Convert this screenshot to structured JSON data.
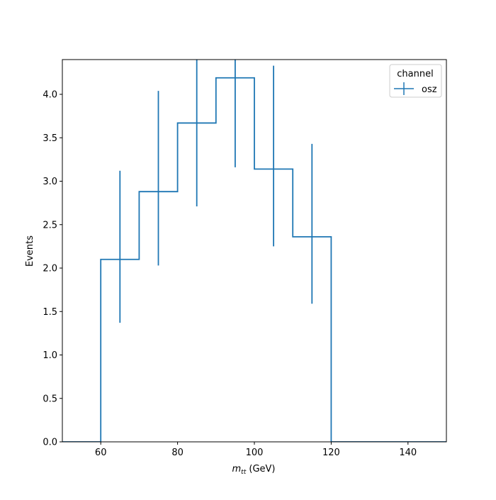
{
  "chart_data": {
    "type": "step-histogram",
    "title": "",
    "xlabel": "m",
    "xlabel_subscript": "tt",
    "xlabel_unit": " (GeV)",
    "ylabel": "Events",
    "xlim": [
      50,
      150
    ],
    "ylim": [
      0,
      4.4
    ],
    "xticks": [
      60,
      80,
      100,
      120,
      140
    ],
    "yticks": [
      0.0,
      0.5,
      1.0,
      1.5,
      2.0,
      2.5,
      3.0,
      3.5,
      4.0
    ],
    "ytick_labels": [
      "0.0",
      "0.5",
      "1.0",
      "1.5",
      "2.0",
      "2.5",
      "3.0",
      "3.5",
      "4.0"
    ],
    "xtick_labels": [
      "60",
      "80",
      "100",
      "120",
      "140"
    ],
    "grid": false,
    "legend": {
      "title": "channel",
      "placement": "top-right",
      "entries": [
        {
          "name": "osz",
          "color": "#1f77b4"
        }
      ]
    },
    "series": [
      {
        "name": "osz",
        "color": "#1f77b4",
        "bin_edges": [
          50,
          60,
          70,
          80,
          90,
          100,
          110,
          120,
          130,
          140,
          150
        ],
        "values": [
          0,
          2.1,
          2.88,
          3.67,
          4.19,
          3.14,
          2.36,
          0,
          0,
          0
        ],
        "errors": [
          {
            "x": 65,
            "low": 1.37,
            "high": 3.12
          },
          {
            "x": 75,
            "low": 2.03,
            "high": 4.04
          },
          {
            "x": 85,
            "low": 2.71,
            "high": 4.4
          },
          {
            "x": 95,
            "low": 3.16,
            "high": 4.4
          },
          {
            "x": 105,
            "low": 2.25,
            "high": 4.33
          },
          {
            "x": 115,
            "low": 1.59,
            "high": 3.43
          }
        ]
      }
    ]
  }
}
